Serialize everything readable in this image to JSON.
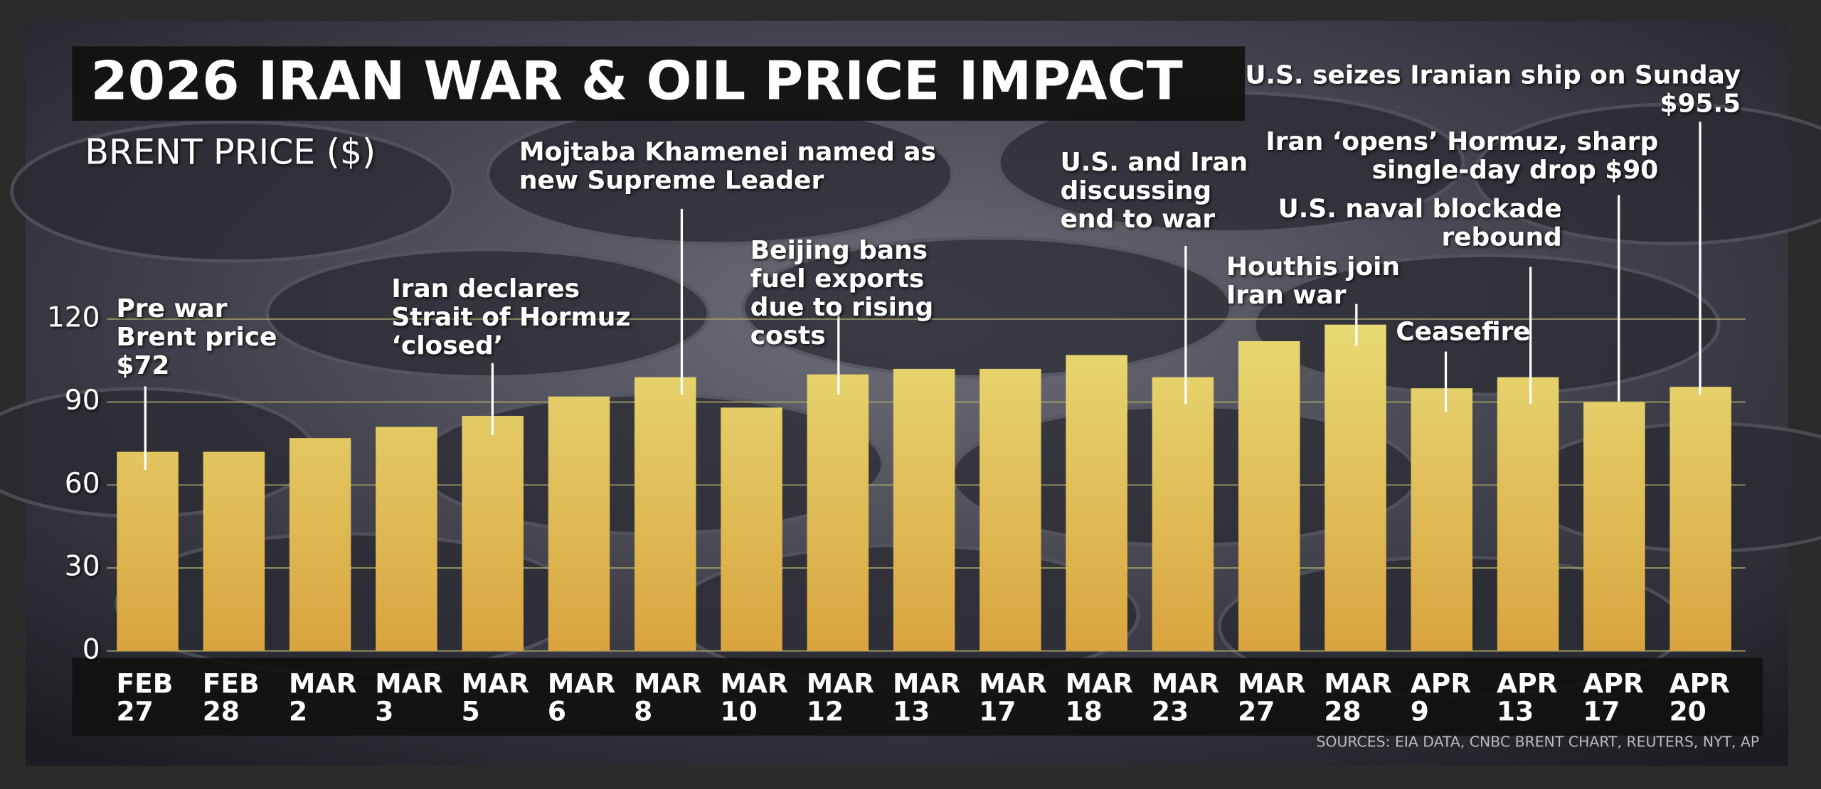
{
  "chart_data": {
    "type": "bar",
    "title": "2026 IRAN WAR & OIL PRICE IMPACT",
    "y_label": "BRENT PRICE ($)",
    "source": "SOURCES:  EIA DATA, CNBC BRENT CHART, REUTERS, NYT, AP",
    "categories": [
      "FEB 27",
      "FEB 28",
      "MAR 2",
      "MAR 3",
      "MAR 5",
      "MAR 6",
      "MAR 8",
      "MAR 10",
      "MAR 12",
      "MAR 13",
      "MAR 17",
      "MAR 18",
      "MAR 23",
      "MAR 27",
      "MAR 28",
      "APR 9",
      "APR 13",
      "APR 17",
      "APR 20"
    ],
    "values": [
      72,
      72,
      77,
      81,
      85,
      92,
      99,
      88,
      100,
      102,
      102,
      107,
      99,
      112,
      118,
      95,
      99,
      90,
      95.5
    ],
    "color": "#d9a43f",
    "ylim": [
      0,
      120
    ],
    "yticks": [
      0,
      30,
      60,
      90,
      120
    ],
    "grid": true,
    "annotations": [
      {
        "lines": [
          "Pre war",
          "Brent price",
          "$72"
        ]
      },
      {
        "lines": [
          "Iran declares",
          "Strait of Hormuz",
          "‘closed’"
        ]
      },
      {
        "lines": [
          "Mojtaba Khamenei named as",
          "new Supreme Leader"
        ]
      },
      {
        "lines": [
          "Beijing bans",
          "fuel exports",
          "due to rising",
          "costs"
        ]
      },
      {
        "lines": [
          "U.S. and Iran",
          "discussing",
          "end to war"
        ]
      },
      {
        "lines": [
          "Houthis join",
          "Iran war"
        ]
      },
      {
        "lines": [
          "Ceasefire"
        ]
      },
      {
        "lines": [
          "U.S. naval blockade",
          "rebound"
        ]
      },
      {
        "lines": [
          "Iran ‘opens’ Hormuz, sharp",
          "single-day drop $90"
        ]
      },
      {
        "lines": [
          "U.S. seizes Iranian ship on Sunday",
          "$95.5"
        ]
      }
    ]
  }
}
